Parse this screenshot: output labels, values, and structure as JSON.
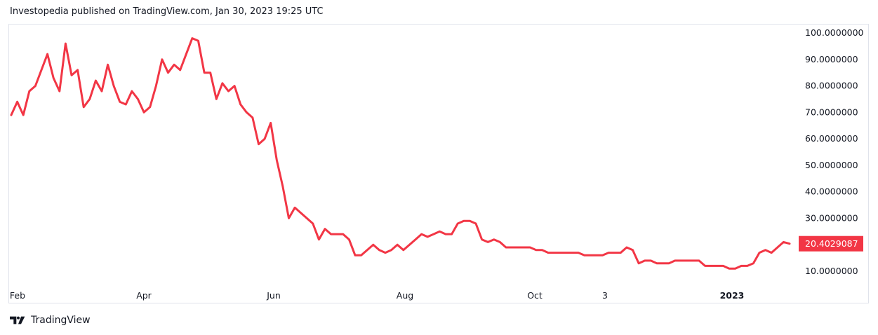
{
  "header": {
    "text": "Investopedia published on TradingView.com, Jan 30, 2023 19:25 UTC"
  },
  "footer": {
    "brand": "TradingView",
    "logo_icon": "tradingview-logo-icon"
  },
  "colors": {
    "line": "#f23645",
    "badge": "#f23645",
    "axis_text": "#131722",
    "frame": "#e0e3eb"
  },
  "chart_data": {
    "type": "line",
    "title": "",
    "xlabel": "",
    "ylabel": "",
    "x_tick_labels": [
      "Feb",
      "Apr",
      "Jun",
      "Aug",
      "Oct",
      "3",
      "2023"
    ],
    "y_tick_labels": [
      "100.0000000",
      "90.0000000",
      "80.0000000",
      "70.0000000",
      "60.0000000",
      "50.0000000",
      "40.0000000",
      "30.0000000",
      "10.0000000"
    ],
    "ylim": [
      7,
      103
    ],
    "last_value_label": "20.4029087",
    "series": [
      {
        "values": [
          69,
          74,
          69,
          78,
          80,
          86,
          92,
          83,
          78,
          96,
          84,
          86,
          72,
          75,
          82,
          78,
          88,
          80,
          74,
          73,
          78,
          75,
          70,
          72,
          80,
          90,
          85,
          88,
          86,
          92,
          98,
          97,
          85,
          85,
          75,
          81,
          78,
          80,
          73,
          70,
          68,
          58,
          60,
          66,
          52,
          42,
          30,
          34,
          32,
          30,
          28,
          22,
          26,
          24,
          24,
          24,
          22,
          16,
          16,
          18,
          20,
          18,
          17,
          18,
          20,
          18,
          20,
          22,
          24,
          23,
          24,
          25,
          24,
          24,
          28,
          29,
          29,
          28,
          22,
          21,
          22,
          21,
          19,
          19,
          19,
          19,
          19,
          18,
          18,
          17,
          17,
          17,
          17,
          17,
          17,
          16,
          16,
          16,
          16,
          17,
          17,
          17,
          19,
          18,
          13,
          14,
          14,
          13,
          13,
          13,
          14,
          14,
          14,
          14,
          14,
          12,
          12,
          12,
          12,
          11,
          11,
          12,
          12,
          13,
          17,
          18,
          17,
          19,
          21,
          20.4
        ]
      }
    ]
  }
}
